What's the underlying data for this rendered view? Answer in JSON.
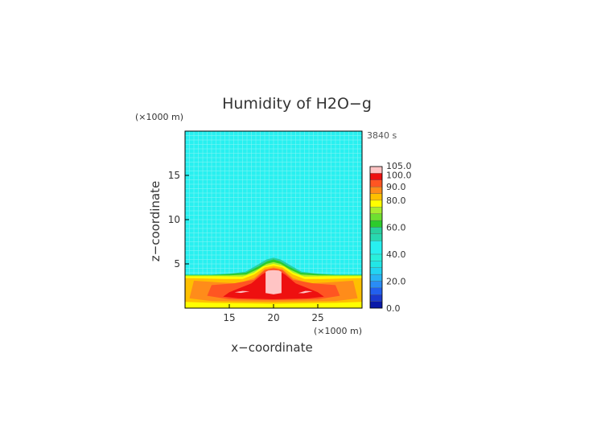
{
  "chart_data": {
    "type": "heatmap",
    "title": "Humidity of H2O−g",
    "xlabel": "x−coordinate",
    "ylabel": "z−coordinate",
    "x_unit": "(×1000 m)",
    "y_unit": "(×1000 m)",
    "time_label": "3840 s",
    "xlim": [
      10,
      30
    ],
    "ylim": [
      0,
      20
    ],
    "x_ticks": [
      "15",
      "20",
      "25"
    ],
    "x_tick_values": [
      15,
      20,
      25
    ],
    "y_ticks": [
      "5",
      "10",
      "15"
    ],
    "y_tick_values": [
      5,
      10,
      15
    ],
    "grid": true,
    "background_value": 45,
    "contours": [
      {
        "level": 55,
        "color": "#28d0a0",
        "points": [
          [
            10.0,
            0.0
          ],
          [
            10.0,
            3.8
          ],
          [
            13.0,
            3.8
          ],
          [
            15.0,
            3.9
          ],
          [
            16.8,
            4.1
          ],
          [
            18.2,
            4.9
          ],
          [
            19.2,
            5.5
          ],
          [
            20.0,
            5.7
          ],
          [
            20.8,
            5.5
          ],
          [
            21.8,
            4.9
          ],
          [
            23.2,
            4.1
          ],
          [
            25.0,
            3.9
          ],
          [
            27.0,
            3.8
          ],
          [
            30.0,
            3.8
          ],
          [
            30.0,
            0.0
          ]
        ]
      },
      {
        "level": 65,
        "color": "#2ccc2c",
        "points": [
          [
            10.0,
            0.0
          ],
          [
            10.0,
            3.75
          ],
          [
            13.0,
            3.75
          ],
          [
            15.0,
            3.85
          ],
          [
            16.9,
            4.0
          ],
          [
            18.3,
            4.7
          ],
          [
            19.3,
            5.3
          ],
          [
            20.0,
            5.5
          ],
          [
            20.7,
            5.3
          ],
          [
            21.7,
            4.7
          ],
          [
            23.1,
            4.0
          ],
          [
            25.0,
            3.85
          ],
          [
            27.0,
            3.75
          ],
          [
            30.0,
            3.75
          ],
          [
            30.0,
            0.0
          ]
        ]
      },
      {
        "level": 75,
        "color": "#a8ec30",
        "points": [
          [
            10.0,
            0.0
          ],
          [
            10.0,
            3.7
          ],
          [
            15.0,
            3.7
          ],
          [
            16.9,
            3.8
          ],
          [
            18.2,
            4.4
          ],
          [
            19.2,
            5.0
          ],
          [
            20.0,
            5.2
          ],
          [
            20.8,
            5.0
          ],
          [
            21.8,
            4.4
          ],
          [
            23.1,
            3.8
          ],
          [
            25.0,
            3.7
          ],
          [
            30.0,
            3.7
          ],
          [
            30.0,
            0.0
          ]
        ]
      },
      {
        "level": 80,
        "color": "#ffff00",
        "points": [
          [
            10.0,
            0.0
          ],
          [
            10.0,
            3.6
          ],
          [
            14.0,
            3.6
          ],
          [
            16.5,
            3.55
          ],
          [
            17.8,
            4.0
          ],
          [
            18.8,
            4.7
          ],
          [
            20.0,
            5.0
          ],
          [
            21.2,
            4.7
          ],
          [
            22.2,
            4.0
          ],
          [
            23.5,
            3.55
          ],
          [
            26.0,
            3.6
          ],
          [
            30.0,
            3.6
          ],
          [
            30.0,
            0.0
          ]
        ]
      },
      {
        "level": 85,
        "color": "#ffc000",
        "points": [
          [
            10.0,
            0.7
          ],
          [
            10.0,
            3.4
          ],
          [
            14.5,
            3.3
          ],
          [
            16.5,
            3.3
          ],
          [
            17.8,
            3.8
          ],
          [
            19.0,
            4.6
          ],
          [
            20.0,
            4.8
          ],
          [
            21.0,
            4.6
          ],
          [
            22.2,
            3.8
          ],
          [
            23.5,
            3.3
          ],
          [
            25.5,
            3.3
          ],
          [
            30.0,
            3.4
          ],
          [
            30.0,
            0.7
          ],
          [
            27.0,
            0.6
          ],
          [
            20.0,
            0.5
          ],
          [
            13.0,
            0.6
          ]
        ]
      },
      {
        "level": 90,
        "color": "#ff8c1a",
        "points": [
          [
            10.5,
            1.1
          ],
          [
            11.0,
            3.1
          ],
          [
            14.0,
            2.9
          ],
          [
            16.0,
            2.8
          ],
          [
            17.8,
            3.4
          ],
          [
            19.0,
            4.4
          ],
          [
            20.0,
            4.6
          ],
          [
            21.0,
            4.4
          ],
          [
            22.2,
            3.4
          ],
          [
            24.0,
            2.8
          ],
          [
            26.0,
            2.9
          ],
          [
            29.0,
            3.1
          ],
          [
            29.5,
            1.1
          ],
          [
            27.0,
            0.8
          ],
          [
            20.0,
            0.7
          ],
          [
            13.0,
            0.8
          ]
        ]
      },
      {
        "level": 95,
        "color": "#ff5522",
        "points": [
          [
            12.5,
            1.4
          ],
          [
            13.0,
            2.6
          ],
          [
            15.5,
            2.8
          ],
          [
            17.8,
            3.2
          ],
          [
            19.0,
            4.3
          ],
          [
            20.0,
            4.5
          ],
          [
            21.0,
            4.3
          ],
          [
            22.2,
            3.2
          ],
          [
            24.5,
            2.8
          ],
          [
            27.0,
            2.6
          ],
          [
            27.5,
            1.4
          ],
          [
            25.0,
            1.0
          ],
          [
            20.0,
            0.9
          ],
          [
            15.0,
            1.0
          ]
        ]
      },
      {
        "level": 100,
        "color": "#ee1010",
        "points": [
          [
            14.3,
            1.3
          ],
          [
            15.0,
            1.8
          ],
          [
            16.5,
            2.4
          ],
          [
            17.5,
            2.8
          ],
          [
            18.7,
            3.8
          ],
          [
            19.4,
            4.2
          ],
          [
            20.0,
            4.3
          ],
          [
            20.6,
            4.2
          ],
          [
            21.3,
            3.8
          ],
          [
            22.5,
            2.8
          ],
          [
            23.5,
            2.4
          ],
          [
            25.0,
            1.8
          ],
          [
            25.7,
            1.3
          ],
          [
            24.0,
            1.1
          ],
          [
            20.0,
            1.0
          ],
          [
            16.0,
            1.1
          ]
        ]
      },
      {
        "level": 105,
        "color": "#ffc4c4",
        "points": [
          [
            19.1,
            1.7
          ],
          [
            19.1,
            4.1
          ],
          [
            19.4,
            4.25
          ],
          [
            20.0,
            4.3
          ],
          [
            20.6,
            4.25
          ],
          [
            20.9,
            4.1
          ],
          [
            20.9,
            1.7
          ],
          [
            20.0,
            1.55
          ]
        ]
      },
      {
        "level": 105,
        "color": "#ffc4c4",
        "points": [
          [
            15.6,
            1.8
          ],
          [
            16.5,
            1.95
          ],
          [
            17.3,
            1.9
          ],
          [
            16.3,
            1.72
          ]
        ]
      },
      {
        "level": 105,
        "color": "#ffc4c4",
        "points": [
          [
            22.8,
            1.7
          ],
          [
            23.6,
            1.95
          ],
          [
            24.4,
            1.9
          ],
          [
            23.4,
            1.68
          ]
        ]
      }
    ],
    "legend_placement": "right",
    "legend_labels": [
      "105.0",
      "100.0",
      "90.0",
      "80.0",
      "60.0",
      "40.0",
      "20.0",
      "0.0"
    ],
    "legend_label_values": [
      105,
      100,
      90,
      80,
      60,
      40,
      20,
      0
    ],
    "legend_bins": [
      {
        "lo": 0,
        "hi": 5,
        "color": "#0a1aa8"
      },
      {
        "lo": 5,
        "hi": 10,
        "color": "#1a3ad0"
      },
      {
        "lo": 10,
        "hi": 15,
        "color": "#2260ee"
      },
      {
        "lo": 15,
        "hi": 20,
        "color": "#2a8cf5"
      },
      {
        "lo": 20,
        "hi": 25,
        "color": "#28b4f5"
      },
      {
        "lo": 25,
        "hi": 30,
        "color": "#22d4f2"
      },
      {
        "lo": 30,
        "hi": 35,
        "color": "#22e6e6"
      },
      {
        "lo": 35,
        "hi": 40,
        "color": "#28f0dc"
      },
      {
        "lo": 40,
        "hi": 50,
        "color": "#28f0f0"
      },
      {
        "lo": 50,
        "hi": 55,
        "color": "#28d8b0"
      },
      {
        "lo": 55,
        "hi": 60,
        "color": "#28d0a0"
      },
      {
        "lo": 60,
        "hi": 65,
        "color": "#2ccc2c"
      },
      {
        "lo": 65,
        "hi": 70,
        "color": "#6ee030"
      },
      {
        "lo": 70,
        "hi": 75,
        "color": "#a8ec30"
      },
      {
        "lo": 75,
        "hi": 80,
        "color": "#ffff00"
      },
      {
        "lo": 80,
        "hi": 85,
        "color": "#ffc000"
      },
      {
        "lo": 85,
        "hi": 90,
        "color": "#ff8c1a"
      },
      {
        "lo": 90,
        "hi": 95,
        "color": "#ff5522"
      },
      {
        "lo": 95,
        "hi": 100,
        "color": "#ee1010"
      },
      {
        "lo": 100,
        "hi": 105,
        "color": "#ffc4c4"
      }
    ],
    "colors": {
      "background": "#28f0f0",
      "grid": "#8cf4f4",
      "axis": "#000000",
      "text": "#333333"
    }
  }
}
